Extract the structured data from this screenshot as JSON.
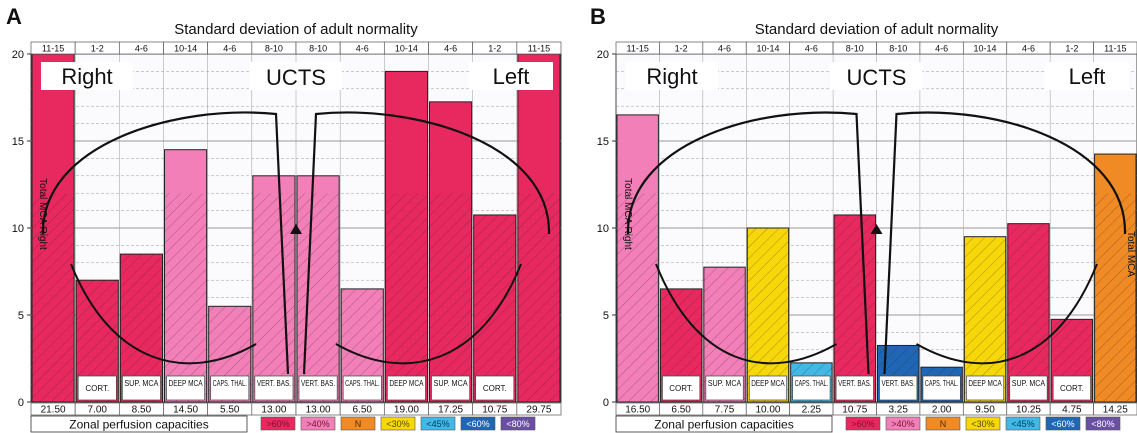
{
  "figure": {
    "y_ticks": [
      "0",
      "5",
      "10",
      "15",
      "20"
    ],
    "legend": [
      {
        "label": ">60%",
        "color": "#e8295f",
        "text_color": "#7a1030"
      },
      {
        "label": ">40%",
        "color": "#f27fb8",
        "text_color": "#7a1030"
      },
      {
        "label": "N",
        "color": "#f08a24",
        "text_color": "#5a2a00"
      },
      {
        "label": "<30%",
        "color": "#f5d70a",
        "text_color": "#5a4a00"
      },
      {
        "label": "<45%",
        "color": "#42b8e6",
        "text_color": "#063a60"
      },
      {
        "label": "<60%",
        "color": "#1f66b5",
        "text_color": "#ffffff"
      },
      {
        "label": "<80%",
        "color": "#6a4fa3",
        "text_color": "#ffffff"
      }
    ]
  },
  "chart_data": [
    {
      "type": "bar",
      "panel": "A",
      "title": "Standard deviation of adult normality",
      "xlabel": "Zonal perfusion capacities",
      "ylim": [
        0,
        20
      ],
      "yticks": [
        0,
        5,
        10,
        15,
        20
      ],
      "center_label": "UCTS",
      "side_labels": [
        "Right",
        "Left"
      ],
      "end_label": "Total MCA Right",
      "ranges": [
        "11-15",
        "1-2",
        "4-6",
        "10-14",
        "4-6",
        "8-10",
        "8-10",
        "4-6",
        "10-14",
        "4-6",
        "1-2",
        "11-15"
      ],
      "categories": [
        "",
        "CORT.",
        "SUP. MCA",
        "DEEP MCA",
        "CAPS. THAL.",
        "VERT. BAS.",
        "VERT. BAS.",
        "CAPS. THAL.",
        "DEEP MCA",
        "SUP. MCA",
        "CORT.",
        ""
      ],
      "value_labels": [
        "21.50",
        "7.00",
        "8.50",
        "14.50",
        "5.50",
        "13.00",
        "13.00",
        "6.50",
        "19.00",
        "17.25",
        "10.75",
        "29.75"
      ],
      "values": [
        21.5,
        7.0,
        8.5,
        14.5,
        5.5,
        13.0,
        13.0,
        6.5,
        19.0,
        17.25,
        10.75,
        29.75
      ],
      "colors": [
        "#e8295f",
        "#e8295f",
        "#e8295f",
        "#f27fb8",
        "#f27fb8",
        "#f27fb8",
        "#f27fb8",
        "#f27fb8",
        "#e8295f",
        "#e8295f",
        "#e8295f",
        "#e8295f"
      ]
    },
    {
      "type": "bar",
      "panel": "B",
      "title": "Standard deviation of adult normality",
      "xlabel": "Zonal perfusion capacities",
      "ylim": [
        0,
        20
      ],
      "yticks": [
        0,
        5,
        10,
        15,
        20
      ],
      "center_label": "UCTS",
      "side_labels": [
        "Right",
        "Left"
      ],
      "end_label": "Total MCA Right",
      "end_label_right": "Total MCA",
      "ranges": [
        "11-15",
        "1-2",
        "4-6",
        "10-14",
        "4-6",
        "8-10",
        "8-10",
        "4-6",
        "10-14",
        "4-6",
        "1-2",
        "11-15"
      ],
      "categories": [
        "",
        "CORT.",
        "SUP. MCA",
        "DEEP MCA",
        "CAPS. THAL.",
        "VERT. BAS.",
        "VERT. BAS.",
        "CAPS. THAL.",
        "DEEP MCA",
        "SUP. MCA",
        "CORT.",
        ""
      ],
      "value_labels": [
        "16.50",
        "6.50",
        "7.75",
        "10.00",
        "2.25",
        "10.75",
        "3.25",
        "2.00",
        "9.50",
        "10.25",
        "4.75",
        "14.25"
      ],
      "values": [
        16.5,
        6.5,
        7.75,
        10.0,
        2.25,
        10.75,
        3.25,
        2.0,
        9.5,
        10.25,
        4.75,
        14.25
      ],
      "colors": [
        "#f27fb8",
        "#e8295f",
        "#f27fb8",
        "#f5d70a",
        "#42b8e6",
        "#e8295f",
        "#1f66b5",
        "#1f66b5",
        "#f5d70a",
        "#e8295f",
        "#e8295f",
        "#f08a24"
      ]
    }
  ]
}
